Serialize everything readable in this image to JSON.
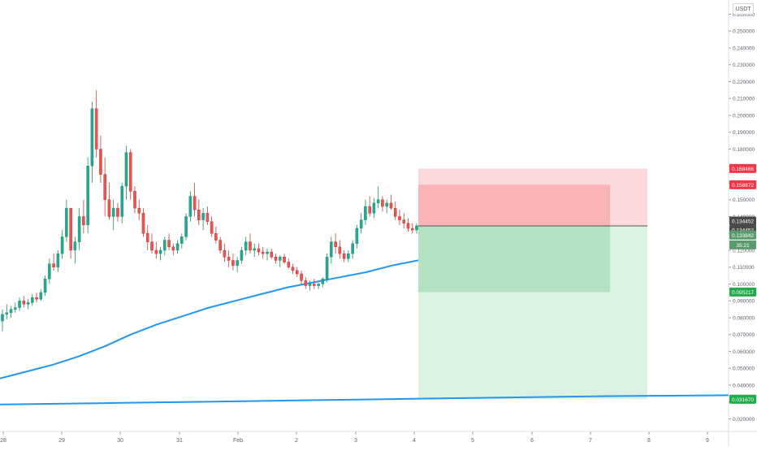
{
  "currency": "USDT",
  "chart_data": {
    "type": "candlestick",
    "x_tick_labels": [
      "28",
      "29",
      "30",
      "31",
      "Feb",
      "2",
      "3",
      "4",
      "5",
      "6",
      "7",
      "8",
      "9"
    ],
    "ylim": [
      0.013,
      0.2665
    ],
    "y_tick_labels": [
      "0.020000",
      "0.030000",
      "0.040000",
      "0.050000",
      "0.060000",
      "0.070000",
      "0.080000",
      "0.090000",
      "0.100000",
      "0.110000",
      "0.120000",
      "0.130000",
      "0.140000",
      "0.150000",
      "0.160000",
      "0.170000",
      "0.180000",
      "0.190000",
      "0.200000",
      "0.210000",
      "0.220000",
      "0.230000",
      "0.240000",
      "0.250000",
      "0.260000"
    ],
    "candles_ohlc": [
      [
        0.078,
        0.085,
        0.072,
        0.082
      ],
      [
        0.082,
        0.088,
        0.079,
        0.083
      ],
      [
        0.083,
        0.087,
        0.08,
        0.085
      ],
      [
        0.085,
        0.089,
        0.083,
        0.086
      ],
      [
        0.086,
        0.092,
        0.084,
        0.09
      ],
      [
        0.09,
        0.093,
        0.086,
        0.088
      ],
      [
        0.088,
        0.091,
        0.085,
        0.089
      ],
      [
        0.089,
        0.094,
        0.087,
        0.092
      ],
      [
        0.092,
        0.095,
        0.089,
        0.091
      ],
      [
        0.091,
        0.097,
        0.09,
        0.095
      ],
      [
        0.095,
        0.105,
        0.093,
        0.103
      ],
      [
        0.103,
        0.115,
        0.1,
        0.112
      ],
      [
        0.112,
        0.118,
        0.108,
        0.11
      ],
      [
        0.11,
        0.12,
        0.107,
        0.118
      ],
      [
        0.118,
        0.132,
        0.115,
        0.128
      ],
      [
        0.128,
        0.15,
        0.125,
        0.145
      ],
      [
        0.145,
        0.138,
        0.115,
        0.12
      ],
      [
        0.12,
        0.128,
        0.112,
        0.125
      ],
      [
        0.125,
        0.145,
        0.12,
        0.14
      ],
      [
        0.14,
        0.15,
        0.13,
        0.135
      ],
      [
        0.135,
        0.175,
        0.13,
        0.17
      ],
      [
        0.17,
        0.208,
        0.16,
        0.204
      ],
      [
        0.204,
        0.215,
        0.175,
        0.18
      ],
      [
        0.18,
        0.188,
        0.16,
        0.165
      ],
      [
        0.165,
        0.175,
        0.14,
        0.15
      ],
      [
        0.15,
        0.16,
        0.138,
        0.14
      ],
      [
        0.14,
        0.15,
        0.132,
        0.145
      ],
      [
        0.145,
        0.148,
        0.137,
        0.14
      ],
      [
        0.14,
        0.16,
        0.136,
        0.158
      ],
      [
        0.158,
        0.182,
        0.15,
        0.178
      ],
      [
        0.178,
        0.18,
        0.15,
        0.155
      ],
      [
        0.155,
        0.158,
        0.142,
        0.145
      ],
      [
        0.145,
        0.15,
        0.138,
        0.142
      ],
      [
        0.142,
        0.145,
        0.128,
        0.13
      ],
      [
        0.13,
        0.135,
        0.12,
        0.125
      ],
      [
        0.125,
        0.13,
        0.118,
        0.12
      ],
      [
        0.12,
        0.125,
        0.115,
        0.118
      ],
      [
        0.118,
        0.122,
        0.114,
        0.12
      ],
      [
        0.12,
        0.128,
        0.117,
        0.126
      ],
      [
        0.126,
        0.13,
        0.12,
        0.122
      ],
      [
        0.122,
        0.124,
        0.117,
        0.12
      ],
      [
        0.12,
        0.126,
        0.118,
        0.124
      ],
      [
        0.124,
        0.13,
        0.121,
        0.128
      ],
      [
        0.128,
        0.142,
        0.126,
        0.14
      ],
      [
        0.14,
        0.155,
        0.137,
        0.152
      ],
      [
        0.152,
        0.16,
        0.14,
        0.144
      ],
      [
        0.144,
        0.15,
        0.135,
        0.138
      ],
      [
        0.138,
        0.145,
        0.132,
        0.142
      ],
      [
        0.142,
        0.146,
        0.135,
        0.137
      ],
      [
        0.137,
        0.14,
        0.128,
        0.13
      ],
      [
        0.13,
        0.134,
        0.124,
        0.126
      ],
      [
        0.126,
        0.128,
        0.118,
        0.12
      ],
      [
        0.12,
        0.124,
        0.113,
        0.116
      ],
      [
        0.116,
        0.12,
        0.11,
        0.114
      ],
      [
        0.114,
        0.118,
        0.108,
        0.111
      ],
      [
        0.111,
        0.116,
        0.107,
        0.114
      ],
      [
        0.114,
        0.122,
        0.112,
        0.12
      ],
      [
        0.12,
        0.128,
        0.117,
        0.125
      ],
      [
        0.125,
        0.13,
        0.118,
        0.12
      ],
      [
        0.12,
        0.124,
        0.116,
        0.121
      ],
      [
        0.121,
        0.124,
        0.117,
        0.119
      ],
      [
        0.119,
        0.122,
        0.115,
        0.118
      ],
      [
        0.118,
        0.121,
        0.114,
        0.119
      ],
      [
        0.119,
        0.121,
        0.115,
        0.116
      ],
      [
        0.116,
        0.118,
        0.112,
        0.114
      ],
      [
        0.114,
        0.117,
        0.11,
        0.116
      ],
      [
        0.116,
        0.118,
        0.112,
        0.113
      ],
      [
        0.113,
        0.115,
        0.109,
        0.11
      ],
      [
        0.11,
        0.112,
        0.106,
        0.108
      ],
      [
        0.108,
        0.11,
        0.104,
        0.106
      ],
      [
        0.106,
        0.108,
        0.1,
        0.102
      ],
      [
        0.102,
        0.104,
        0.097,
        0.099
      ],
      [
        0.099,
        0.102,
        0.096,
        0.1
      ],
      [
        0.1,
        0.103,
        0.097,
        0.099
      ],
      [
        0.099,
        0.101,
        0.097,
        0.1
      ],
      [
        0.1,
        0.104,
        0.098,
        0.103
      ],
      [
        0.103,
        0.118,
        0.101,
        0.116
      ],
      [
        0.116,
        0.128,
        0.112,
        0.125
      ],
      [
        0.125,
        0.13,
        0.118,
        0.122
      ],
      [
        0.122,
        0.126,
        0.115,
        0.118
      ],
      [
        0.118,
        0.12,
        0.113,
        0.115
      ],
      [
        0.115,
        0.12,
        0.113,
        0.118
      ],
      [
        0.118,
        0.126,
        0.115,
        0.124
      ],
      [
        0.124,
        0.135,
        0.121,
        0.133
      ],
      [
        0.133,
        0.142,
        0.13,
        0.138
      ],
      [
        0.138,
        0.15,
        0.135,
        0.146
      ],
      [
        0.146,
        0.152,
        0.14,
        0.142
      ],
      [
        0.142,
        0.151,
        0.139,
        0.148
      ],
      [
        0.148,
        0.158,
        0.145,
        0.15
      ],
      [
        0.15,
        0.152,
        0.143,
        0.146
      ],
      [
        0.146,
        0.15,
        0.142,
        0.148
      ],
      [
        0.148,
        0.153,
        0.144,
        0.145
      ],
      [
        0.145,
        0.149,
        0.138,
        0.14
      ],
      [
        0.14,
        0.144,
        0.135,
        0.138
      ],
      [
        0.138,
        0.142,
        0.133,
        0.136
      ],
      [
        0.136,
        0.139,
        0.131,
        0.133
      ],
      [
        0.133,
        0.136,
        0.13,
        0.132
      ],
      [
        0.132,
        0.136,
        0.13,
        0.1345
      ]
    ],
    "ma_series": [
      {
        "name": "",
        "color": "#2196f3",
        "values": [
          0.044,
          0.048,
          0.052,
          0.057,
          0.063,
          0.07,
          0.076,
          0.081,
          0.086,
          0.09,
          0.094,
          0.098,
          0.101,
          0.104,
          0.107,
          0.111,
          0.114
        ]
      },
      {
        "name": "",
        "color": "#2196f3",
        "values": [
          0.0285,
          0.0295,
          0.0305,
          0.0315,
          0.0325,
          0.0335,
          0.034
        ]
      }
    ],
    "price_labels": [
      {
        "text": "0.168466",
        "color": "#f23645"
      },
      {
        "text": "0.158872",
        "color": "#f23645"
      },
      {
        "text": "0.134452",
        "color": "#4a4a4a"
      },
      {
        "text": "0.134452",
        "color": "#4a4a4a"
      },
      {
        "text": "0.133842",
        "color": "#5b9a6b"
      },
      {
        "text": "35:21",
        "color": "#5b9a6b"
      },
      {
        "text": "0.095217",
        "color": "#22ab4a"
      },
      {
        "text": "0.031670",
        "color": "#22ab4a"
      }
    ],
    "positions": [
      {
        "entry": 0.134452,
        "stop": 0.168466,
        "target": 0.03167
      },
      {
        "entry": 0.134452,
        "stop": 0.158872,
        "target": 0.095217
      }
    ],
    "grid": false,
    "colors": {
      "up": "#26a69a",
      "down": "#ef5350",
      "ma": "#2196f3"
    }
  }
}
